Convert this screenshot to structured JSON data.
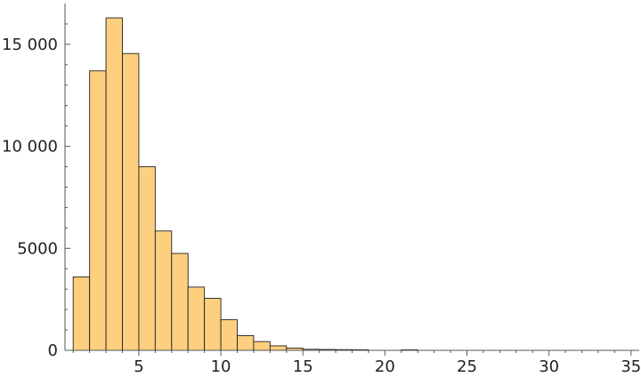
{
  "chart_data": {
    "type": "bar",
    "subtype": "histogram",
    "bin_width": 1,
    "bins": [
      {
        "x0": 1,
        "x1": 2,
        "value": 3600
      },
      {
        "x0": 2,
        "x1": 3,
        "value": 13700
      },
      {
        "x0": 3,
        "x1": 4,
        "value": 16300
      },
      {
        "x0": 4,
        "x1": 5,
        "value": 14550
      },
      {
        "x0": 5,
        "x1": 6,
        "value": 9000
      },
      {
        "x0": 6,
        "x1": 7,
        "value": 5850
      },
      {
        "x0": 7,
        "x1": 8,
        "value": 4750
      },
      {
        "x0": 8,
        "x1": 9,
        "value": 3100
      },
      {
        "x0": 9,
        "x1": 10,
        "value": 2550
      },
      {
        "x0": 10,
        "x1": 11,
        "value": 1500
      },
      {
        "x0": 11,
        "x1": 12,
        "value": 720
      },
      {
        "x0": 12,
        "x1": 13,
        "value": 430
      },
      {
        "x0": 13,
        "x1": 14,
        "value": 220
      },
      {
        "x0": 14,
        "x1": 15,
        "value": 110
      },
      {
        "x0": 15,
        "x1": 16,
        "value": 50
      },
      {
        "x0": 16,
        "x1": 17,
        "value": 40
      },
      {
        "x0": 17,
        "x1": 18,
        "value": 35
      },
      {
        "x0": 18,
        "x1": 19,
        "value": 30
      },
      {
        "x0": 21,
        "x1": 22,
        "value": 25
      }
    ],
    "xlim": [
      0.5,
      35.5
    ],
    "ylim": [
      0,
      17000
    ],
    "x_ticks": [
      5,
      10,
      15,
      20,
      25,
      30,
      35
    ],
    "x_tick_labels": [
      "5",
      "10",
      "15",
      "20",
      "25",
      "30",
      "35"
    ],
    "y_ticks": [
      0,
      5000,
      10000,
      15000
    ],
    "y_tick_labels": [
      "0",
      "5000",
      "10 000",
      "15 000"
    ],
    "title": "",
    "xlabel": "",
    "ylabel": "",
    "grid": false,
    "colors": {
      "bar_fill": "#fdcf7e",
      "bar_stroke": "#222222"
    }
  }
}
